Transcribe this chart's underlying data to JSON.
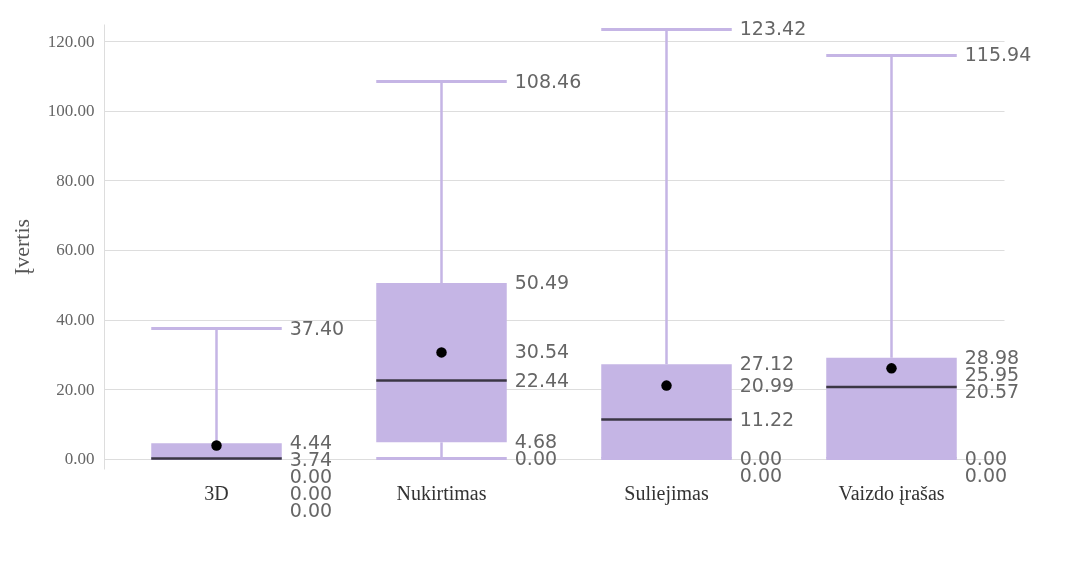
{
  "chart_data": {
    "type": "box",
    "ylabel": "Įvertis",
    "categories": [
      "3D",
      "Nukirtimas",
      "Suliejimas",
      "Vaizdo įrašas"
    ],
    "color": "#c5b5e5",
    "boxes": [
      {
        "low": 0,
        "q1": 0,
        "median": 0,
        "q3": 4.44,
        "high": 37.4,
        "mean": 3.74
      },
      {
        "low": 0,
        "q1": 4.68,
        "median": 22.44,
        "q3": 50.49,
        "high": 108.46,
        "mean": 30.54
      },
      {
        "low": 0,
        "q1": 0,
        "median": 11.22,
        "q3": 27.12,
        "high": 123.42,
        "mean": 20.99
      },
      {
        "low": 0,
        "q1": 0,
        "median": 20.57,
        "q3": 28.98,
        "high": 115.94,
        "mean": 25.95
      }
    ],
    "ylim": [
      -3,
      125
    ],
    "yticks": [
      {
        "value": 0,
        "label": "0.00"
      },
      {
        "value": 20,
        "label": "20.00"
      },
      {
        "value": 40,
        "label": "40.00"
      },
      {
        "value": 60,
        "label": "60.00"
      },
      {
        "value": 80,
        "label": "80.00"
      },
      {
        "value": 100,
        "label": "100.00"
      },
      {
        "value": 120,
        "label": "120.00"
      }
    ],
    "grid": "y",
    "marker": "circle",
    "annotations": [
      "37.40",
      "4.44",
      "3.74",
      "0.00",
      "0.00",
      "0.00",
      "108.46",
      "50.49",
      "30.54",
      "22.44",
      "4.68",
      "0.00",
      "123.42",
      "27.12",
      "20.99",
      "11.22",
      "0.00",
      "0.00",
      "115.94",
      "28.98",
      "25.95",
      "20.57",
      "0.00",
      "0.00"
    ]
  }
}
